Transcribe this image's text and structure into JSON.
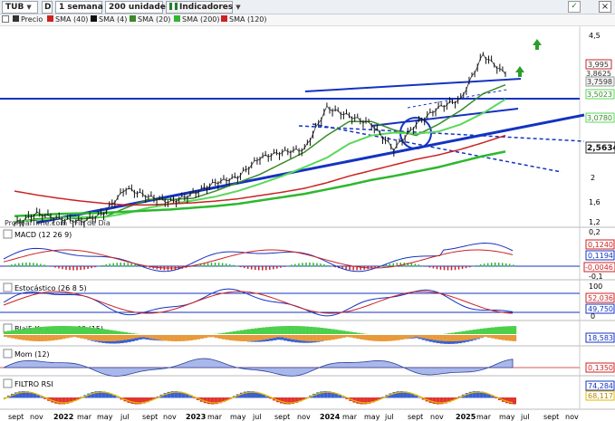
{
  "toolbar": {
    "symbol": "TUB",
    "d_label": "D",
    "period": "1 semana",
    "units": "200 unidades",
    "indicators": "Indicadores"
  },
  "legend": {
    "precio": "Precio",
    "sma40": "SMA (40)",
    "sma4": "SMA (4)",
    "sma20": "SMA (20)",
    "sma200": "SMA (200)",
    "sma120": "SMA (120)"
  },
  "colors": {
    "price": "#111111",
    "sma4": "#333333",
    "sma20": "#3a8a2a",
    "sma40": "#5ad85a",
    "sma120": "#cc2222",
    "sma200": "#2db82d",
    "trendline": "#1433c0",
    "accent_up": "#2a9d2a"
  },
  "main": {
    "watermark": "ProRealTime.com - Fin de Día",
    "price_axis": [
      "4,5",
      "3,995",
      "3,8625",
      "3,7598",
      "3,5023",
      "3,0780",
      "2,5634",
      "2",
      "1,6",
      "1,2"
    ],
    "y_ticks": [
      "4,5",
      "2",
      "1,6",
      "1,2"
    ],
    "price_badges": [
      "3,995",
      "3,8625",
      "3,7598",
      "3,5023",
      "3,0780",
      "2,5634"
    ]
  },
  "macd": {
    "label": "MACD (12 26 9)",
    "values": [
      "0,2",
      "0,1240",
      "0,1194",
      "-0,0046",
      "-0,1"
    ]
  },
  "stoch": {
    "label": "Estocástico (26 8 5)",
    "values": [
      "100",
      "52,036",
      "49,750",
      "0"
    ]
  },
  "blai5": {
    "label": "Blai5 Koncorde v.09 (15)",
    "values": [
      "18,583"
    ]
  },
  "mom": {
    "label": "Mom (12)",
    "values": [
      "0,1350"
    ]
  },
  "filtro": {
    "label": "FILTRO RSI",
    "values": [
      "74,284",
      "68,117"
    ]
  },
  "x_axis": [
    "sept",
    "nov",
    "2022",
    "mar",
    "may",
    "jul",
    "sept",
    "nov",
    "2023",
    "mar",
    "may",
    "jul",
    "sept",
    "nov",
    "2024",
    "mar",
    "may",
    "jul",
    "sept",
    "nov",
    "2025",
    "mar",
    "may",
    "jul",
    "sept",
    "nov"
  ],
  "chart_data": {
    "type": "line",
    "title": "",
    "xlabel": "",
    "ylabel": "",
    "x": [
      "sept",
      "nov",
      "2022",
      "mar",
      "may",
      "jul",
      "sept",
      "nov",
      "2023",
      "mar",
      "may",
      "jul",
      "sept",
      "nov",
      "2024",
      "mar",
      "may",
      "jul",
      "sept",
      "nov",
      "2025",
      "mar",
      "may"
    ],
    "series": [
      {
        "name": "Precio",
        "values": [
          1.25,
          1.45,
          1.35,
          1.3,
          1.45,
          1.9,
          1.75,
          1.65,
          1.8,
          2.0,
          2.1,
          2.45,
          2.55,
          2.6,
          3.35,
          3.2,
          3.05,
          2.6,
          3.05,
          3.35,
          3.5,
          4.3,
          3.95
        ]
      },
      {
        "name": "SMA (20)",
        "values": [
          1.3,
          1.35,
          1.38,
          1.35,
          1.38,
          1.55,
          1.7,
          1.7,
          1.72,
          1.85,
          2.0,
          2.15,
          2.35,
          2.55,
          2.85,
          3.1,
          3.1,
          2.95,
          2.85,
          3.05,
          3.3,
          3.6,
          3.76
        ]
      },
      {
        "name": "SMA (40)",
        "values": [
          1.3,
          1.33,
          1.37,
          1.38,
          1.38,
          1.45,
          1.55,
          1.62,
          1.68,
          1.75,
          1.85,
          1.98,
          2.12,
          2.28,
          2.45,
          2.7,
          2.85,
          2.9,
          2.88,
          2.92,
          3.05,
          3.25,
          3.5
        ]
      },
      {
        "name": "SMA (120)",
        "values": [
          1.85,
          1.78,
          1.72,
          1.67,
          1.63,
          1.6,
          1.6,
          1.62,
          1.64,
          1.67,
          1.71,
          1.77,
          1.83,
          1.9,
          2.0,
          2.12,
          2.22,
          2.32,
          2.42,
          2.5,
          2.6,
          2.72,
          2.85
        ]
      },
      {
        "name": "SMA (200)",
        "values": [
          1.4,
          1.42,
          1.44,
          1.45,
          1.46,
          1.48,
          1.5,
          1.52,
          1.55,
          1.58,
          1.62,
          1.68,
          1.74,
          1.8,
          1.88,
          1.96,
          2.05,
          2.12,
          2.2,
          2.28,
          2.38,
          2.48,
          2.56
        ]
      }
    ],
    "ylim": [
      1.2,
      4.6
    ],
    "grid": true,
    "legend": "top-left"
  }
}
